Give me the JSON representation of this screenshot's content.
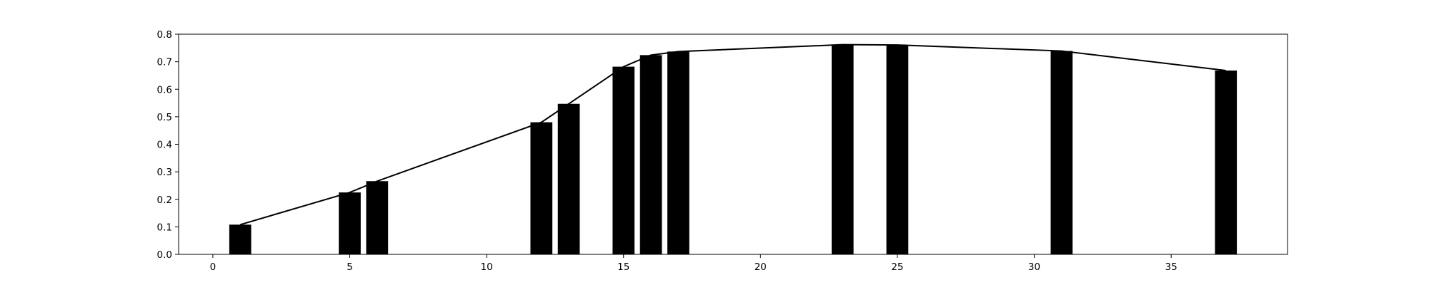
{
  "chart_data": {
    "type": "bar",
    "title": "",
    "xlabel": "",
    "ylabel": "",
    "xlim": [
      -1.25,
      39.25
    ],
    "ylim": [
      0,
      0.8
    ],
    "grid": false,
    "legend": "none",
    "x_ticks": [
      0,
      5,
      10,
      15,
      20,
      25,
      30,
      35
    ],
    "y_ticks": [
      0.0,
      0.1,
      0.2,
      0.3,
      0.4,
      0.5,
      0.6,
      0.7,
      0.8
    ],
    "x_tick_labels": [
      "0",
      "5",
      "10",
      "15",
      "20",
      "25",
      "30",
      "35"
    ],
    "y_tick_labels": [
      "0.0",
      "0.1",
      "0.2",
      "0.3",
      "0.4",
      "0.5",
      "0.6",
      "0.7",
      "0.8"
    ],
    "bar_width": 0.8,
    "bar_color": "#000000",
    "line_color": "#000000",
    "series": [
      {
        "x": [
          1,
          5,
          6,
          12,
          13,
          15,
          16,
          17,
          23,
          25,
          31,
          37
        ],
        "values": [
          0.108,
          0.225,
          0.266,
          0.48,
          0.547,
          0.682,
          0.724,
          0.737,
          0.762,
          0.761,
          0.739,
          0.668
        ]
      }
    ]
  }
}
